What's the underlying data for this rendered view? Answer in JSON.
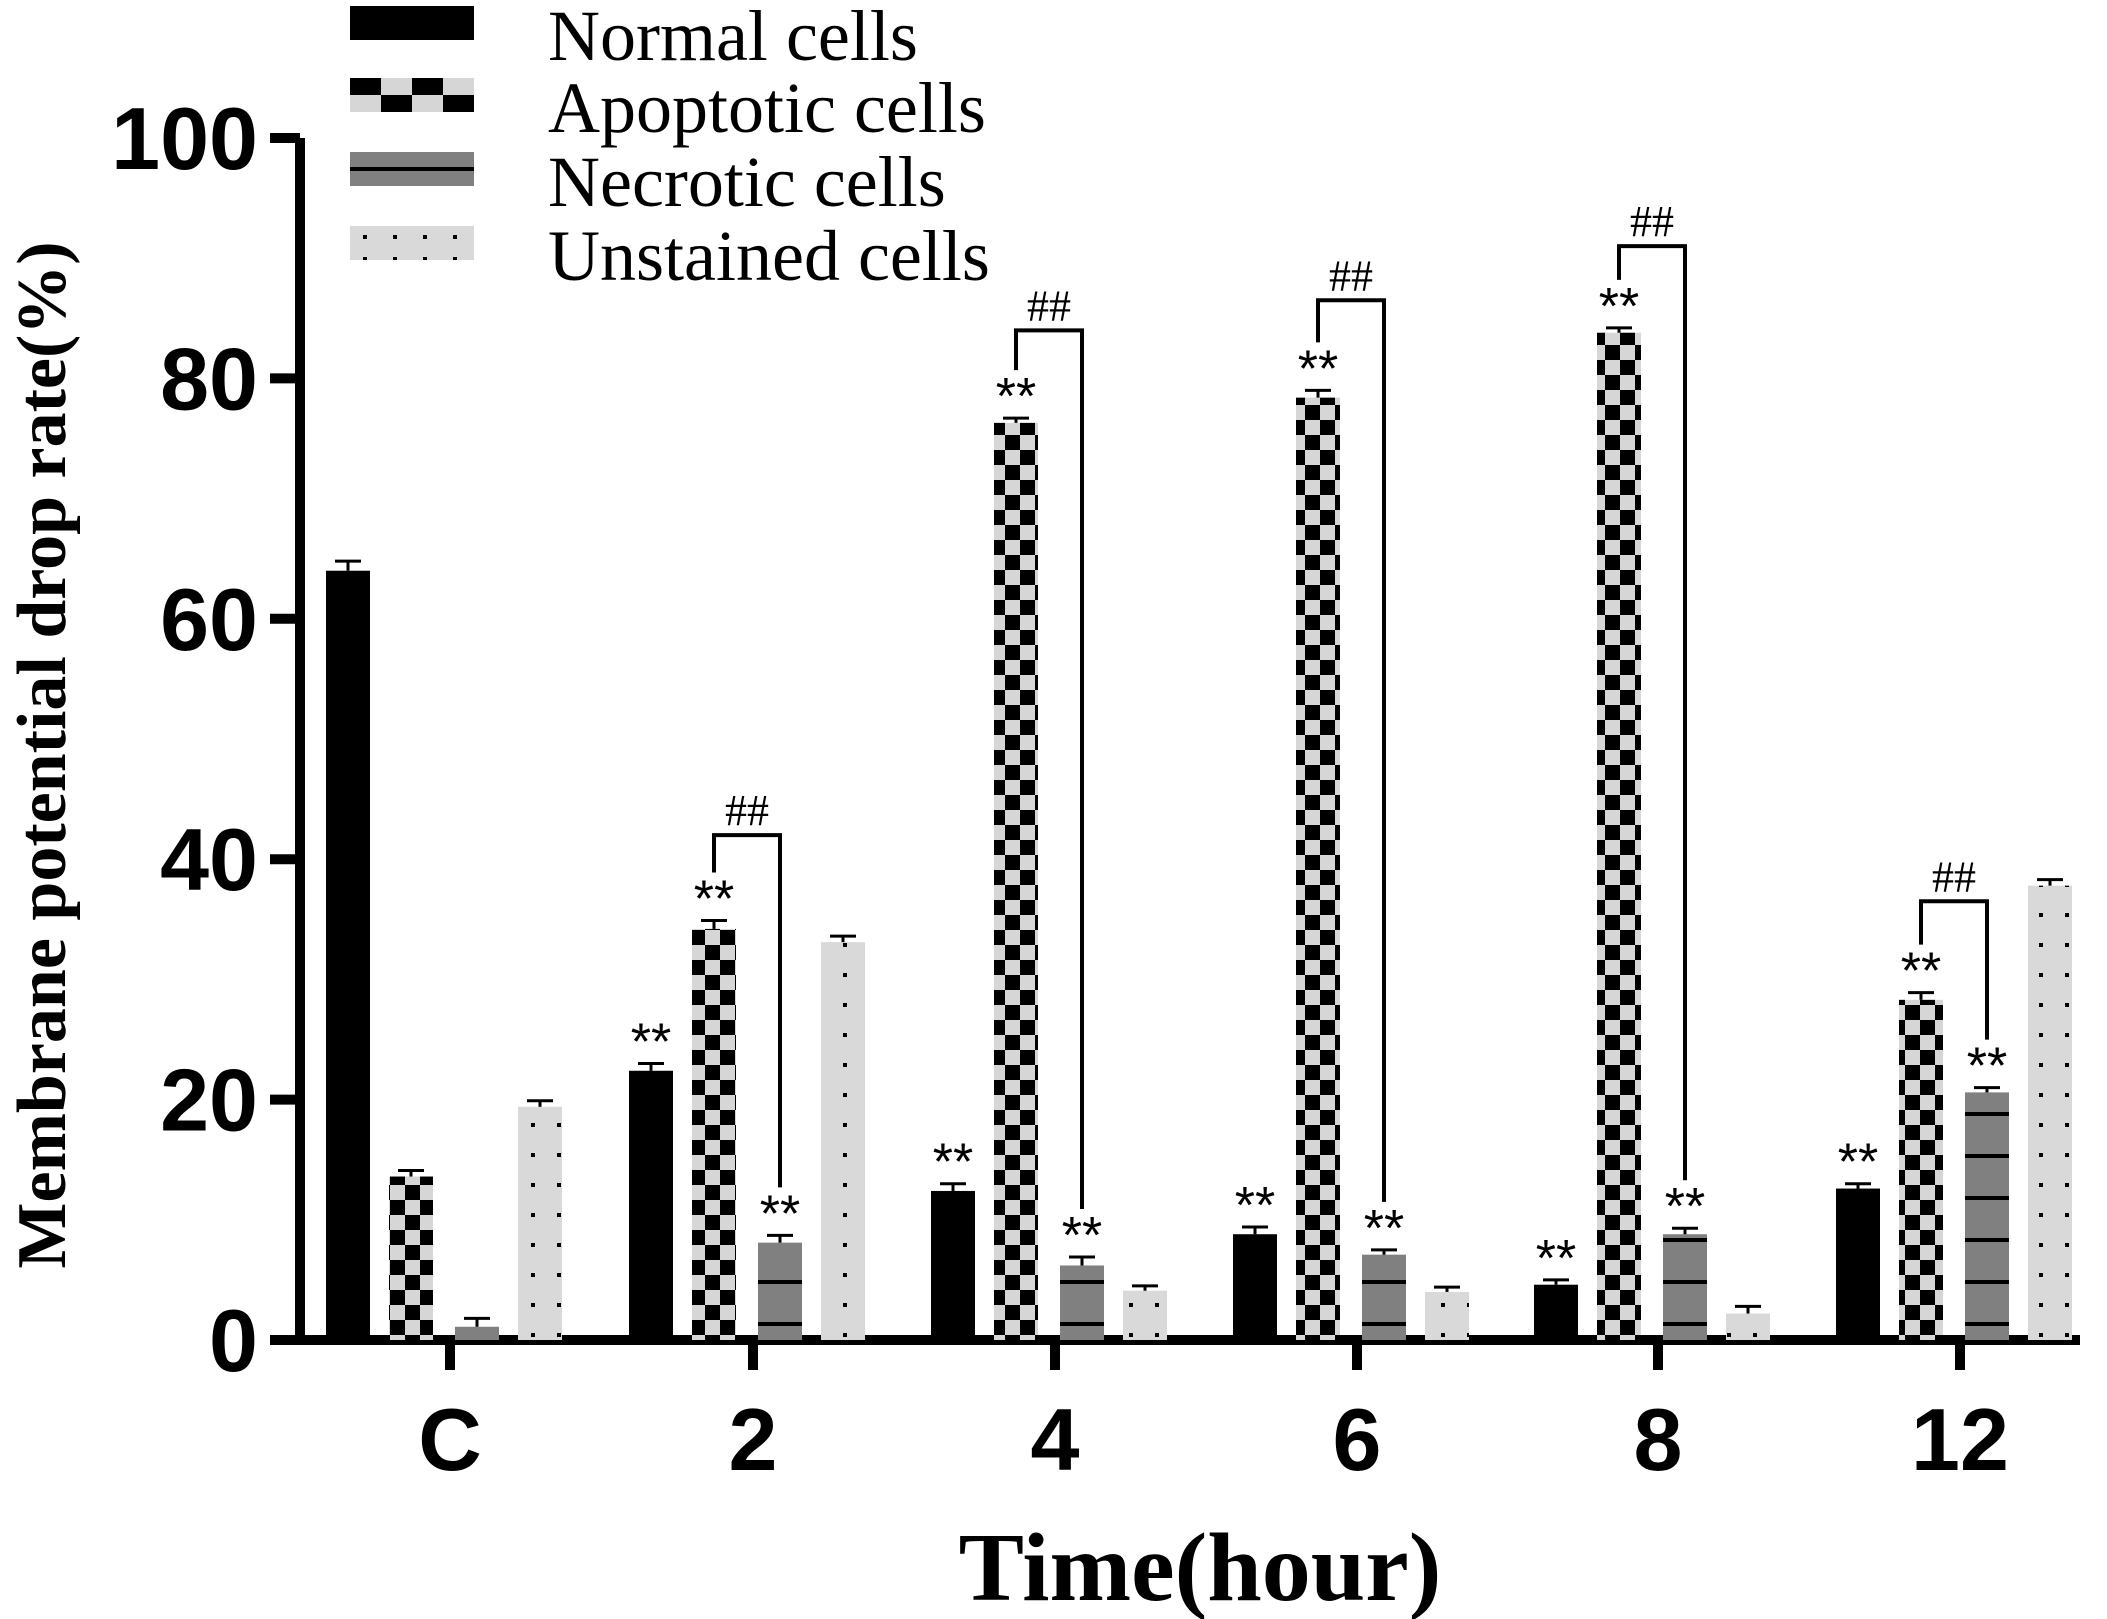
{
  "chart_data": {
    "type": "bar",
    "title": "",
    "xlabel": "Time(hour)",
    "ylabel": "Membrane potential drop rate(%)",
    "ylim": [
      0,
      100
    ],
    "yticks": [
      "0",
      "20",
      "40",
      "60",
      "80",
      "100"
    ],
    "categories": [
      "C",
      "2",
      "4",
      "6",
      "8",
      "12"
    ],
    "legend_position": "top-left",
    "series": [
      {
        "name": "Normal cells",
        "pattern": "solid",
        "color": "#000000",
        "values": [
          64.0,
          22.4,
          12.4,
          8.8,
          4.6,
          12.6
        ],
        "errors": [
          0.8,
          0.6,
          0.6,
          0.6,
          0.4,
          0.4
        ],
        "annotations": [
          "",
          "**",
          "**",
          "**",
          "**",
          "**"
        ]
      },
      {
        "name": "Apoptotic cells",
        "pattern": "checker",
        "color": "#000000",
        "values": [
          13.6,
          34.2,
          76.3,
          78.4,
          83.8,
          28.3
        ],
        "errors": [
          0.5,
          0.7,
          0.4,
          0.6,
          0.4,
          0.6
        ],
        "annotations": [
          "",
          "**",
          "**",
          "**",
          "**",
          "**"
        ]
      },
      {
        "name": "Necrotic cells",
        "pattern": "lines",
        "color": "#808080",
        "values": [
          1.1,
          8.1,
          6.2,
          7.1,
          8.8,
          20.6
        ],
        "errors": [
          0.7,
          0.6,
          0.7,
          0.4,
          0.5,
          0.4
        ],
        "annotations": [
          "",
          "**",
          "**",
          "**",
          "**",
          "**"
        ]
      },
      {
        "name": "Unstained cells",
        "pattern": "dots",
        "color": "#d9d9d9",
        "values": [
          19.4,
          33.1,
          4.1,
          4.0,
          2.2,
          37.8
        ],
        "errors": [
          0.5,
          0.5,
          0.4,
          0.4,
          0.6,
          0.5
        ],
        "annotations": [
          "",
          "",
          "",
          "",
          "",
          ""
        ]
      }
    ],
    "comparisons": [
      {
        "category": "2",
        "between": [
          "Apoptotic cells",
          "Necrotic cells"
        ],
        "label": "##",
        "bracket_y": 42.0
      },
      {
        "category": "4",
        "between": [
          "Apoptotic cells",
          "Necrotic cells"
        ],
        "label": "##",
        "bracket_y": 84.0
      },
      {
        "category": "6",
        "between": [
          "Apoptotic cells",
          "Necrotic cells"
        ],
        "label": "##",
        "bracket_y": 86.5
      },
      {
        "category": "8",
        "between": [
          "Apoptotic cells",
          "Necrotic cells"
        ],
        "label": "##",
        "bracket_y": 91.0
      },
      {
        "category": "12",
        "between": [
          "Apoptotic cells",
          "Necrotic cells"
        ],
        "label": "##",
        "bracket_y": 36.5
      }
    ]
  }
}
